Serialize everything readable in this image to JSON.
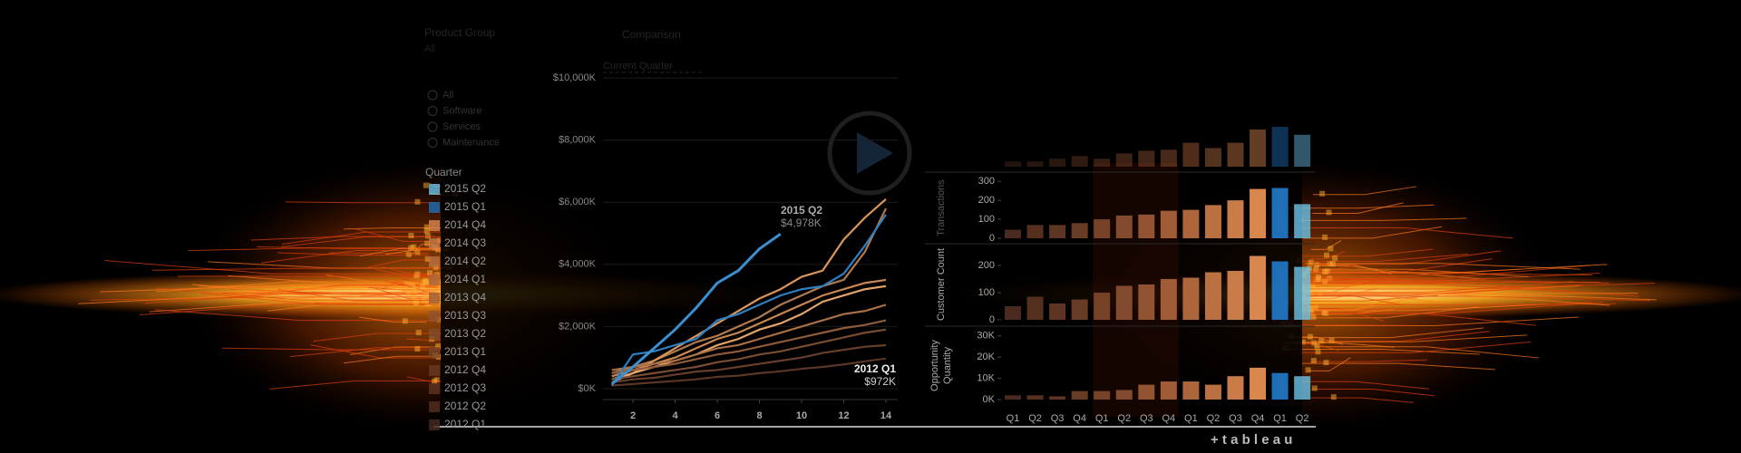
{
  "header": {
    "product_group": "Product Group",
    "product_value": "All",
    "comparison": "Comparison",
    "comparison_value": "Current Quarter"
  },
  "product_options": [
    "All",
    "Software",
    "Services",
    "Maintenance"
  ],
  "quarter_filter": {
    "title": "Quarter",
    "items": [
      "2015 Q2",
      "2015 Q1",
      "2014 Q4",
      "2014 Q3",
      "2014 Q2",
      "2014 Q1",
      "2013 Q4",
      "2013 Q3",
      "2013 Q2",
      "2013 Q1",
      "2012 Q4",
      "2012 Q3",
      "2012 Q2",
      "2012 Q1"
    ]
  },
  "line_chart": {
    "type": "line",
    "x": [
      1,
      2,
      3,
      4,
      5,
      6,
      7,
      8,
      9,
      10,
      11,
      12,
      13,
      14
    ],
    "xlim": [
      1,
      14.4
    ],
    "xticks": [
      2,
      4,
      6,
      8,
      10,
      12,
      14
    ],
    "ylim": [
      0,
      10000
    ],
    "yticks": [
      {
        "value": 0,
        "label": "$0K"
      },
      {
        "value": 2000,
        "label": "$2,000K"
      },
      {
        "value": 4000,
        "label": "$4,000K"
      },
      {
        "value": 6000,
        "label": "$6,000K"
      },
      {
        "value": 8000,
        "label": "$8,000K"
      },
      {
        "value": 10000,
        "label": "$10,000K"
      }
    ],
    "series": [
      {
        "color": "#b07a4e",
        "values": [
          500,
          700,
          900,
          1200,
          1500,
          1700,
          2000,
          2300,
          2700,
          3000,
          3300,
          3500,
          4400,
          5800
        ]
      },
      {
        "color": "#d8955c",
        "values": [
          200,
          500,
          900,
          1300,
          1700,
          2100,
          2500,
          2900,
          3200,
          3600,
          3800,
          4800,
          5500,
          6100
        ]
      },
      {
        "color": "#c98752",
        "values": [
          400,
          600,
          800,
          1000,
          1300,
          1600,
          1800,
          2100,
          2400,
          2700,
          3000,
          3200,
          3400,
          3500
        ]
      },
      {
        "color": "#e3a468",
        "values": [
          300,
          500,
          700,
          900,
          1100,
          1400,
          1600,
          1900,
          2100,
          2400,
          2800,
          3000,
          3200,
          3300
        ]
      },
      {
        "color": "#a86f45",
        "values": [
          600,
          700,
          800,
          900,
          1100,
          1300,
          1400,
          1600,
          1800,
          2000,
          2200,
          2400,
          2500,
          2700
        ]
      },
      {
        "color": "#8e5b3a",
        "values": [
          500,
          600,
          700,
          800,
          950,
          1100,
          1200,
          1350,
          1500,
          1650,
          1800,
          1950,
          2050,
          2200
        ]
      },
      {
        "color": "#7a4d32",
        "values": [
          300,
          400,
          500,
          600,
          700,
          850,
          950,
          1100,
          1200,
          1350,
          1500,
          1650,
          1800,
          1900
        ]
      },
      {
        "color": "#663f2a",
        "values": [
          200,
          300,
          350,
          450,
          550,
          600,
          700,
          800,
          900,
          1000,
          1150,
          1250,
          1350,
          1400
        ]
      },
      {
        "name": "2012 Q1",
        "color": "#5a3625",
        "values": [
          100,
          150,
          200,
          250,
          300,
          380,
          420,
          500,
          560,
          640,
          700,
          780,
          880,
          972
        ],
        "value_labels": [
          null,
          null,
          null,
          null,
          null,
          null,
          null,
          null,
          null,
          null,
          null,
          null,
          null,
          "$972K"
        ]
      },
      {
        "color": "#2d7fc4",
        "values": [
          100,
          1100,
          1200,
          1400,
          1600,
          2200,
          2400,
          2700,
          3000,
          3200,
          3300,
          3700,
          4600,
          5600
        ]
      },
      {
        "name": "2015 Q2",
        "color": "#3b8fd0",
        "values": [
          150,
          700,
          1300,
          1900,
          2600,
          3400,
          3800,
          4500,
          4978,
          null,
          null,
          null,
          null,
          null
        ],
        "value_labels": [
          null,
          null,
          null,
          null,
          null,
          null,
          null,
          null,
          "$4,978K",
          null,
          null,
          null,
          null,
          null
        ]
      }
    ]
  },
  "bar_chart": {
    "type": "bar",
    "categories": [
      "Q1",
      "Q2",
      "Q3",
      "Q4",
      "Q1",
      "Q2",
      "Q3",
      "Q4",
      "Q1",
      "Q2",
      "Q3",
      "Q4",
      "Q1",
      "Q2"
    ],
    "colors": [
      "#4a2a1e",
      "#55301f",
      "#5e3522",
      "#683b25",
      "#764329",
      "#834b2d",
      "#915332",
      "#9f5c37",
      "#ad663c",
      "#bb7042",
      "#c97b48",
      "#d8874f",
      "#1f6fb8",
      "#6cc3e8"
    ],
    "panels": [
      {
        "values": [
          1,
          1,
          1.5,
          2,
          1.5,
          2.5,
          3,
          3.2,
          4.5,
          3.5,
          4.5,
          7,
          7.5,
          6
        ],
        "ylim": [
          0,
          8
        ]
      },
      {
        "label": "Transactions",
        "values": [
          45,
          70,
          70,
          80,
          100,
          120,
          125,
          145,
          150,
          175,
          200,
          260,
          265,
          180
        ],
        "ylim": [
          0,
          320
        ],
        "yticks": [
          0,
          100,
          200,
          300
        ]
      },
      {
        "label": "Customer Count",
        "values": [
          50,
          85,
          60,
          75,
          100,
          125,
          130,
          150,
          155,
          175,
          180,
          235,
          215,
          195
        ],
        "ylim": [
          0,
          260
        ],
        "yticks": [
          0,
          100,
          200
        ]
      },
      {
        "label": "Opportunity Quantity",
        "values": [
          2,
          2,
          1.5,
          4,
          4,
          4.5,
          7,
          8.5,
          8.5,
          7,
          11,
          15,
          12.5,
          11
        ],
        "ylim": [
          0,
          32
        ],
        "yticks": [
          {
            "value": 0,
            "label": "0K"
          },
          {
            "value": 10,
            "label": "10K"
          },
          {
            "value": 20,
            "label": "20K"
          },
          {
            "value": 30,
            "label": "30K"
          }
        ]
      }
    ]
  },
  "footer": {
    "logo": "+ t a b l e a u"
  }
}
